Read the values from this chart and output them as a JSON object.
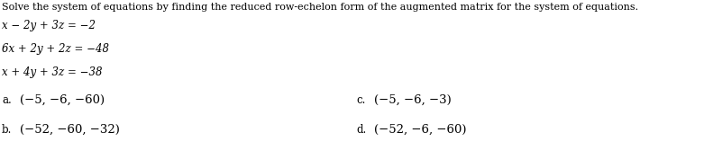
{
  "title": "Solve the system of equations by finding the reduced row-echelon form of the augmented matrix for the system of equations.",
  "eq1": "x − 2y + 3z = −2",
  "eq2": "6x + 2y + 2z = −48",
  "eq3": "x + 4y + 3z = −38",
  "choice_a_label": "a.",
  "choice_a_text": "(−5, −6, −60)",
  "choice_b_label": "b.",
  "choice_b_text": "(−52, −60, −32)",
  "choice_c_label": "c.",
  "choice_c_text": "(−5, −6, −3)",
  "choice_d_label": "d.",
  "choice_d_text": "(−52, −6, −60)",
  "bg_color": "#ffffff",
  "text_color": "#000000",
  "title_fontsize": 8.0,
  "eq_fontsize": 8.5,
  "choice_label_fontsize": 8.5,
  "choice_text_fontsize": 9.5
}
